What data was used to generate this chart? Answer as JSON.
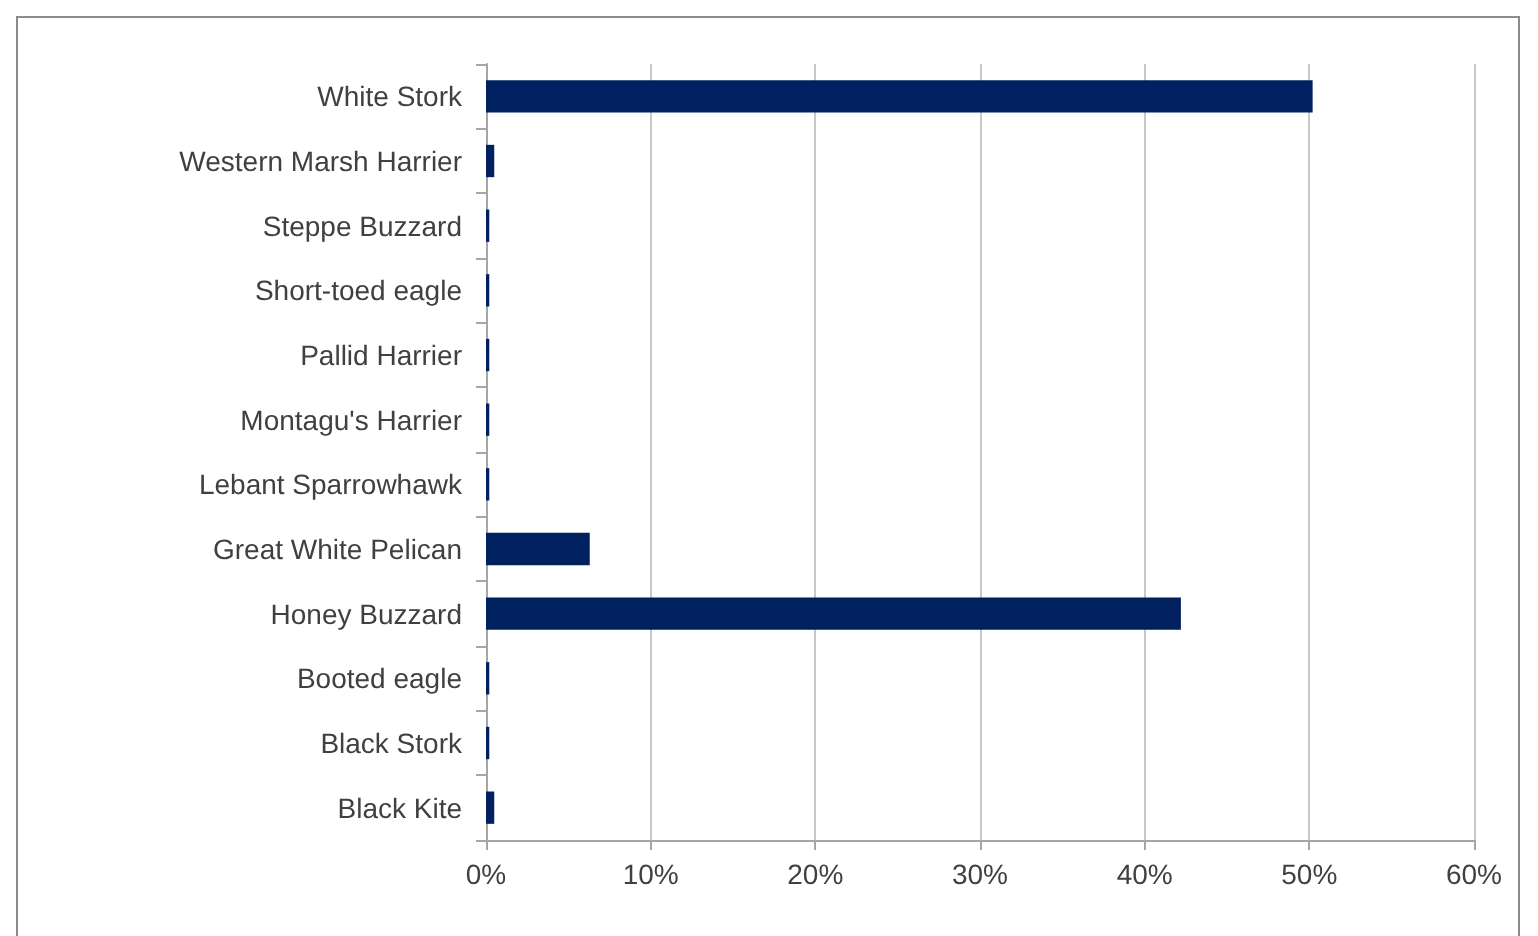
{
  "chart_data": {
    "type": "bar",
    "orientation": "horizontal",
    "categories": [
      "White Stork",
      "Western Marsh Harrier",
      "Steppe Buzzard",
      "Short-toed eagle",
      "Pallid Harrier",
      "Montagu's Harrier",
      "Lebant Sparrowhawk",
      "Great White Pelican",
      "Honey Buzzard",
      "Booted eagle",
      "Black Stork",
      "Black Kite"
    ],
    "values": [
      50.2,
      0.5,
      0.2,
      0.2,
      0.2,
      0.2,
      0.2,
      6.3,
      42.2,
      0.2,
      0.2,
      0.5
    ],
    "color": "#002060",
    "xlim": [
      0,
      60
    ],
    "xticks": [
      {
        "value": 0,
        "label": "0%"
      },
      {
        "value": 10,
        "label": "10%"
      },
      {
        "value": 20,
        "label": "20%"
      },
      {
        "value": 30,
        "label": "30%"
      },
      {
        "value": 40,
        "label": "40%"
      },
      {
        "value": 50,
        "label": "50%"
      },
      {
        "value": 60,
        "label": "60%"
      }
    ],
    "grid": "x"
  }
}
